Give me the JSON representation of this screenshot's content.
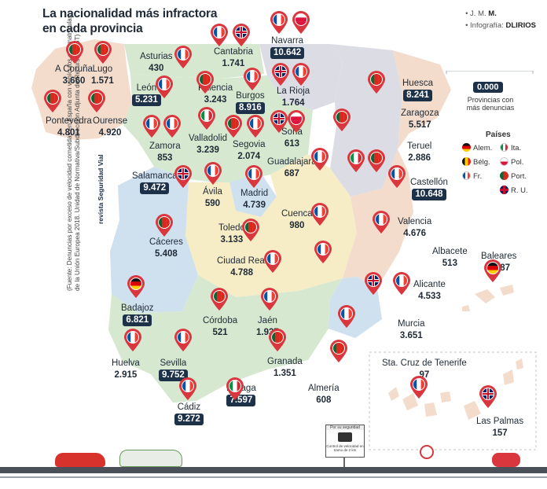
{
  "header": {
    "title_line1": "La nacionalidad más infractora",
    "title_line2": "en cada provincia",
    "credit1_prefix": "• J. M.",
    "credit1_name": "M.",
    "credit2_prefix": "• Infografía:",
    "credit2_name": "DLIRIOS"
  },
  "colors": {
    "sea": "#ffffff",
    "blue": "#cfe0ee",
    "green": "#d6e8cf",
    "yellow": "#f6ecc6",
    "orange": "#f3dccb",
    "grey": "#dcdde4",
    "box": "#1d3148",
    "pin": "#d9363e"
  },
  "provinces": [
    {
      "name": "A Coruña",
      "value": "3.660",
      "boxed": false
    },
    {
      "name": "Lugo",
      "value": "1.571",
      "boxed": false
    },
    {
      "name": "Pontevedra",
      "value": "4.801",
      "boxed": false
    },
    {
      "name": "Ourense",
      "value": "4.920",
      "boxed": false
    },
    {
      "name": "Asturias",
      "value": "430",
      "boxed": false
    },
    {
      "name": "Cantabria",
      "value": "1.741",
      "boxed": false
    },
    {
      "name": "Navarra",
      "value": "10.642",
      "boxed": true
    },
    {
      "name": "León",
      "value": "5.231",
      "boxed": true
    },
    {
      "name": "Palencia",
      "value": "3.243",
      "boxed": false
    },
    {
      "name": "Burgos",
      "value": "8.916",
      "boxed": true
    },
    {
      "name": "La Rioja",
      "value": "1.764",
      "boxed": false
    },
    {
      "name": "Huesca",
      "value": "8.241",
      "boxed": true
    },
    {
      "name": "Zaragoza",
      "value": "5.517",
      "boxed": false
    },
    {
      "name": "Zamora",
      "value": "853",
      "boxed": false
    },
    {
      "name": "Valladolid",
      "value": "3.239",
      "boxed": false
    },
    {
      "name": "Segovia",
      "value": "2.074",
      "boxed": false
    },
    {
      "name": "Soria",
      "value": "613",
      "boxed": false
    },
    {
      "name": "Teruel",
      "value": "2.886",
      "boxed": false
    },
    {
      "name": "Salamanca",
      "value": "9.472",
      "boxed": true
    },
    {
      "name": "Ávila",
      "value": "590",
      "boxed": false
    },
    {
      "name": "Madrid",
      "value": "4.739",
      "boxed": false
    },
    {
      "name": "Guadalajara",
      "value": "687",
      "boxed": false
    },
    {
      "name": "Castellón",
      "value": "10.648",
      "boxed": true
    },
    {
      "name": "Cuenca",
      "value": "980",
      "boxed": false
    },
    {
      "name": "Valencia",
      "value": "4.676",
      "boxed": false
    },
    {
      "name": "Toledo",
      "value": "3.133",
      "boxed": false
    },
    {
      "name": "Cáceres",
      "value": "5.408",
      "boxed": false
    },
    {
      "name": "Ciudad Real",
      "value": "4.788",
      "boxed": false
    },
    {
      "name": "Albacete",
      "value": "513",
      "boxed": false
    },
    {
      "name": "Baleares",
      "value": "5.287",
      "boxed": false
    },
    {
      "name": "Badajoz",
      "value": "6.821",
      "boxed": true
    },
    {
      "name": "Alicante",
      "value": "4.533",
      "boxed": false
    },
    {
      "name": "Córdoba",
      "value": "521",
      "boxed": false
    },
    {
      "name": "Jaén",
      "value": "1.937",
      "boxed": false
    },
    {
      "name": "Murcia",
      "value": "3.651",
      "boxed": false
    },
    {
      "name": "Huelva",
      "value": "2.915",
      "boxed": false
    },
    {
      "name": "Sevilla",
      "value": "9.752",
      "boxed": true
    },
    {
      "name": "Granada",
      "value": "1.351",
      "boxed": false
    },
    {
      "name": "Almería",
      "value": "608",
      "boxed": false
    },
    {
      "name": "Málaga",
      "value": "7.597",
      "boxed": true
    },
    {
      "name": "Cádiz",
      "value": "9.272",
      "boxed": true
    },
    {
      "name": "Sta. Cruz de Tenerife",
      "value": "97",
      "boxed": false
    },
    {
      "name": "Las Palmas",
      "value": "157",
      "boxed": false
    }
  ],
  "legend": {
    "zero_value": "0.000",
    "zero_desc": "Provincias con más denuncias",
    "countries_title": "Países",
    "countries": [
      {
        "label": "Alem.",
        "flag": "de"
      },
      {
        "label": "Ita.",
        "flag": "it"
      },
      {
        "label": "Bélg.",
        "flag": "be"
      },
      {
        "label": "Pol.",
        "flag": "pl"
      },
      {
        "label": "Fr.",
        "flag": "fr"
      },
      {
        "label": "Port.",
        "flag": "pt"
      },
      {
        "label": "R. U.",
        "flag": "gb"
      }
    ]
  },
  "pins": [
    "pt",
    "pt",
    "pt",
    "pt",
    "fr",
    "fr",
    "gb",
    "fr",
    "pl",
    "fr",
    "pt",
    "fr",
    "gb",
    "fr",
    "pt",
    "fr",
    "fr",
    "it",
    "pt",
    "fr",
    "gb",
    "pl",
    "pt",
    "it",
    "pt",
    "fr",
    "gb",
    "fr",
    "fr",
    "fr",
    "fr",
    "fr",
    "pt",
    "pt",
    "fr",
    "fr",
    "de",
    "pt",
    "fr",
    "gb",
    "fr",
    "fr",
    "fr",
    "fr",
    "pt",
    "pt",
    "fr",
    "fr",
    "gb",
    "de",
    "it"
  ],
  "source_note": "(Fuente: Denuncias por exceso de velocidad cometidas en España con vehículos con matrículas de la Unión Europea 2018. Unidad de Normativa/Subdirección Adjunta de Recursos DGT)",
  "logo_text": "revista Seguridad Vial",
  "sign_text_top": "Por su seguridad",
  "sign_text_bottom": "Control de velocidad en tramo de 2 km"
}
